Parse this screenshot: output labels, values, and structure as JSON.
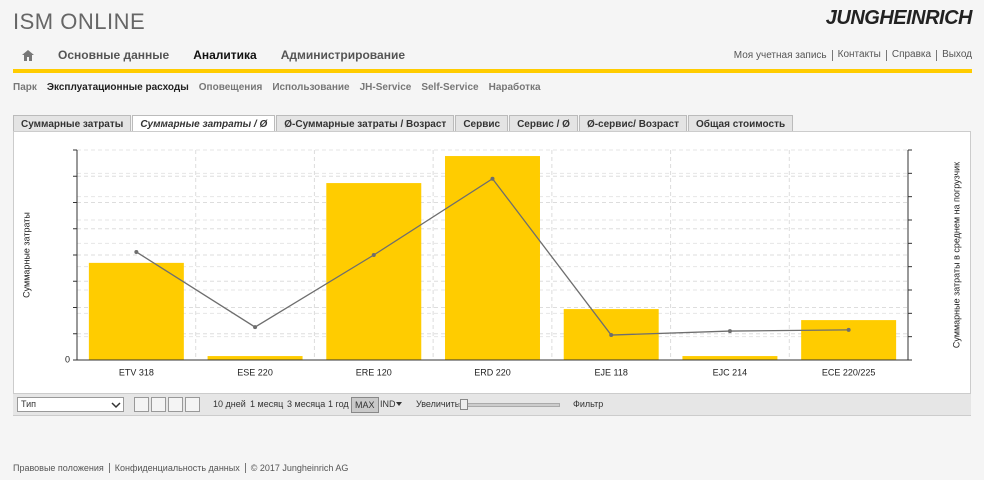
{
  "header": {
    "logo": "ISM ONLINE",
    "brand": "JUNGHEINRICH"
  },
  "nav": [
    "Основные данные",
    "Аналитика",
    "Администрирование"
  ],
  "user_links": [
    "Моя учетная запись",
    "Контакты",
    "Справка",
    "Выход"
  ],
  "subnav": [
    "Парк",
    "Эксплуатационные расходы",
    "Оповещения",
    "Использование",
    "JH-Service",
    "Self-Service",
    "Наработка"
  ],
  "tabs": [
    "Суммарные затраты",
    "Суммарные затраты / Ø",
    "Ø-Суммарные затраты / Возраст",
    "Сервис",
    "Сервис / Ø",
    "Ø-сервис/ Возраст",
    "Общая стоимость"
  ],
  "chart_data": {
    "type": "bar",
    "y_label": "Суммарные затраты",
    "y2_label": "Суммарные затраты в среднем на погрузчик",
    "categories": [
      "ETV 318",
      "ESE 220",
      "ERE 120",
      "ERD 220",
      "EJE 118",
      "EJC 214",
      "ECE 220/225"
    ],
    "series": [
      {
        "type": "bar",
        "color": "#ffcc00",
        "values": [
          3.7,
          0.15,
          6.74,
          7.77,
          1.94,
          0.15,
          1.52
        ]
      },
      {
        "type": "line",
        "axis": "y2",
        "color": "#6e6e6e",
        "values": [
          4.63,
          1.41,
          4.5,
          7.77,
          1.07,
          1.24,
          1.29
        ]
      }
    ],
    "ylim": [
      0,
      8
    ],
    "yticks": [
      0,
      {
        "value": 1,
        "label": null
      },
      {
        "value": 2,
        "label": null
      },
      {
        "value": 3,
        "label": null
      },
      {
        "value": 4,
        "label": null
      },
      {
        "value": 5,
        "label": null
      },
      {
        "value": 6,
        "label": null
      },
      {
        "value": 7,
        "label": null
      },
      {
        "value": 8,
        "label": null
      }
    ],
    "y2lim": [
      0,
      9
    ],
    "y2ticks": [
      {
        "value": 0,
        "label": null
      },
      {
        "value": 1,
        "label": null
      },
      {
        "value": 2,
        "label": null
      },
      {
        "value": 3,
        "label": null
      },
      {
        "value": 4,
        "label": null
      },
      {
        "value": 5,
        "label": null
      },
      {
        "value": 6,
        "label": null
      },
      {
        "value": 7,
        "label": null
      },
      {
        "value": 8,
        "label": null
      },
      {
        "value": 9,
        "label": null
      }
    ],
    "grid": true
  },
  "toolbar": {
    "type_select": "Тип",
    "periods": [
      "10 дней",
      "1 месяц",
      "3 месяца",
      "1 год",
      "MAX"
    ],
    "index": "IND",
    "zoom": "Увеличить",
    "filter": "Фильтр"
  },
  "footer": [
    "Правовые положения",
    "Конфиденциальность данных",
    "© 2017 Jungheinrich AG"
  ]
}
